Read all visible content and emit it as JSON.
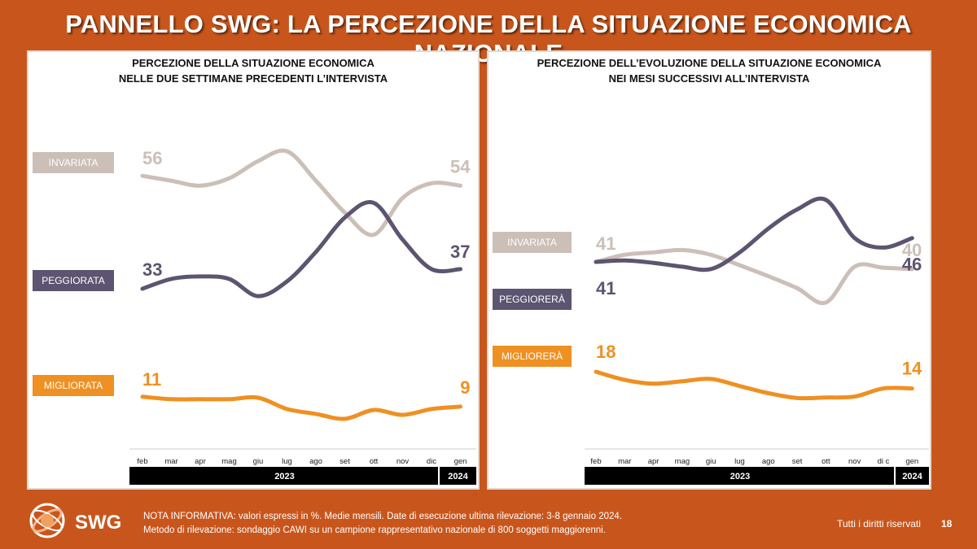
{
  "slide": {
    "title": "PANNELLO SWG: LA PERCEZIONE DELLA SITUAZIONE ECONOMICA NAZIONALE",
    "note_line1": "NOTA INFORMATIVA: valori espressi in %. Medie mensili. Date di esecuzione ultima rilevazione:  3-8 gennaio 2024.",
    "note_line2": "Metodo di rilevazione: sondaggio CAWI su un campione rappresentativo nazionale di 800 soggetti maggiorenni.",
    "rights": "Tutti i diritti riservati",
    "page": "18",
    "logo_text": "SWG"
  },
  "colors": {
    "background": "#c8561c",
    "grey": "#cbbfb8",
    "dark": "#5c5470",
    "orange": "#ef9022",
    "black": "#000000"
  },
  "chart_data": [
    {
      "type": "line",
      "title_line1": "PERCEZIONE DELLA SITUAZIONE ECONOMICA",
      "title_line2": "NELLE DUE SETTIMANE PRECEDENTI L’INTERVISTA",
      "categories": [
        "feb",
        "mar",
        "apr",
        "mag",
        "giu",
        "lug",
        "ago",
        "set",
        "ott",
        "nov",
        "dic",
        "gen"
      ],
      "years": [
        "2023",
        "2024"
      ],
      "series": [
        {
          "name": "INVARIATA",
          "color": "#cbbfb8",
          "first_label": "56",
          "last_label": "54",
          "values": [
            56,
            55,
            54,
            55.5,
            59,
            61,
            55,
            48.5,
            44,
            51.5,
            54.5,
            54
          ]
        },
        {
          "name": "PEGGIORATA",
          "color": "#5c5470",
          "first_label": "33",
          "last_label": "37",
          "values": [
            33,
            35,
            35.5,
            35,
            31.5,
            34.5,
            40.5,
            47.5,
            50.5,
            43,
            37,
            37
          ]
        },
        {
          "name": "MIGLIORATA",
          "color": "#ef9022",
          "first_label": "11",
          "last_label": "9",
          "values": [
            11,
            10.5,
            10.5,
            10.5,
            10.8,
            8.5,
            7.5,
            6.5,
            8.3,
            7.3,
            8.5,
            9
          ]
        }
      ]
    },
    {
      "type": "line",
      "title_line1": "PERCEZIONE DELL’EVOLUZIONE DELLA SITUAZIONE ECONOMICA",
      "title_line2": "NEI MESI SUCCESSIVI ALL’INTERVISTA",
      "categories": [
        "feb",
        "mar",
        "apr",
        "mag",
        "giu",
        "lug",
        "ago",
        "set",
        "ott",
        "nov",
        "di c",
        "gen"
      ],
      "years": [
        "2023",
        "2024"
      ],
      "series": [
        {
          "name": "INVARIATA",
          "color": "#cbbfb8",
          "first_label": "41",
          "last_label": "40",
          "values": [
            41,
            42.5,
            43,
            43.5,
            42.5,
            40.3,
            38,
            35.5,
            32.5,
            40,
            39.8,
            39.5
          ]
        },
        {
          "name": "PEGGIORERÀ",
          "color": "#5c5470",
          "first_label": "41",
          "last_label": "46",
          "values": [
            41,
            41.3,
            40.8,
            40,
            39.5,
            43,
            48,
            52,
            54,
            46,
            44,
            46
          ]
        },
        {
          "name": "MIGLIORERÀ",
          "color": "#ef9022",
          "first_label": "18",
          "last_label": "14",
          "values": [
            18,
            16.3,
            15.5,
            16,
            16.5,
            15,
            13.5,
            12.5,
            12.6,
            12.8,
            14.5,
            14.5
          ]
        }
      ]
    }
  ]
}
